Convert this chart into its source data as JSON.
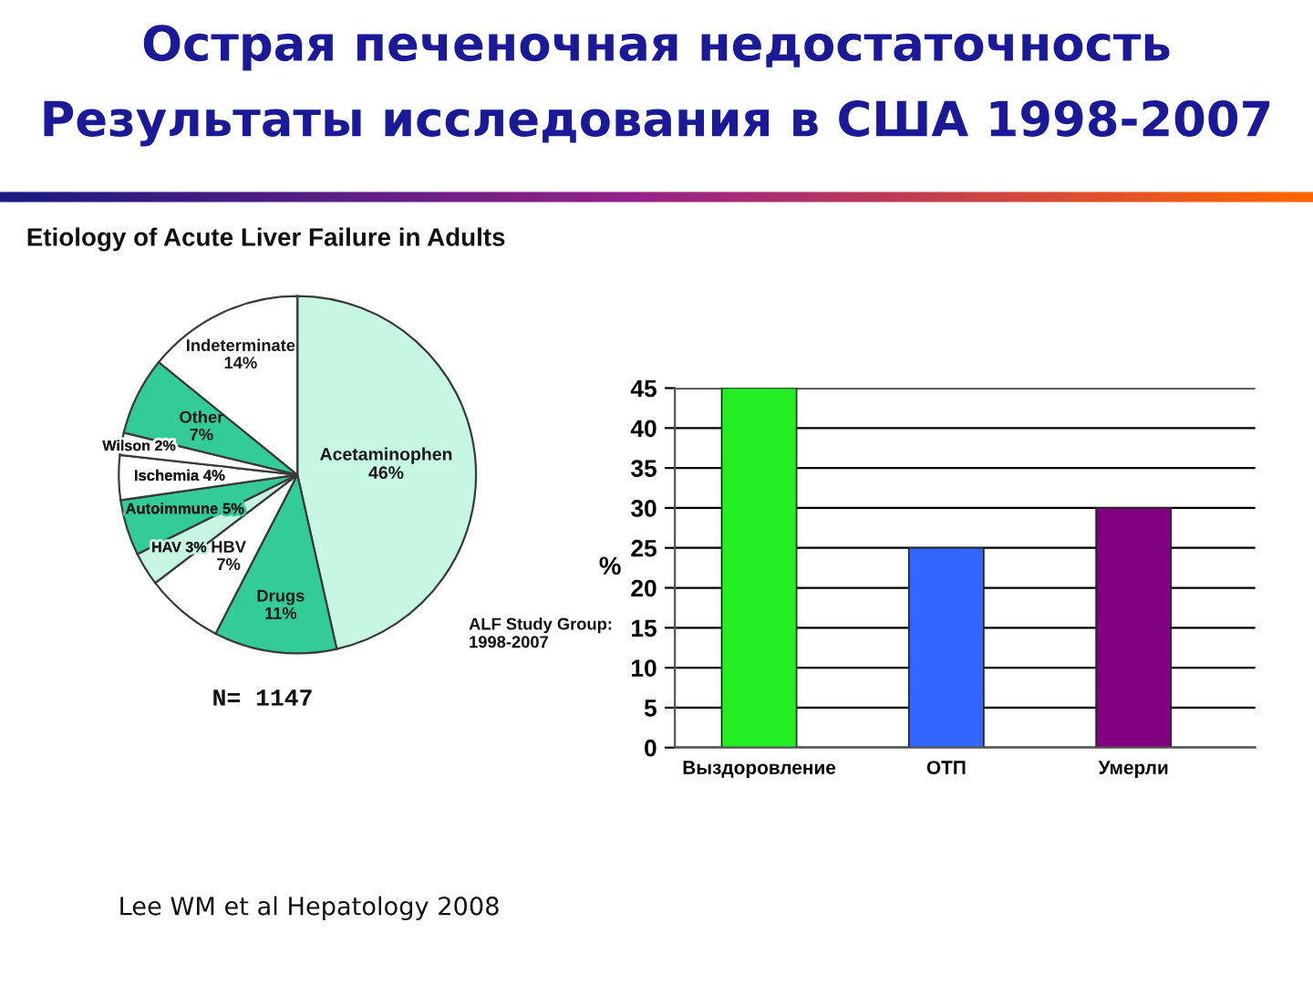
{
  "chart_data": [
    {
      "type": "pie",
      "title": "Etiology of Acute Liver Failure in Adults",
      "categories": [
        "Acetaminophen",
        "Drugs",
        "HBV",
        "HAV",
        "Autoimmune",
        "Ischemia",
        "Wilson",
        "Other",
        "Indeterminate"
      ],
      "values": [
        46,
        11,
        7,
        3,
        5,
        4,
        2,
        7,
        14
      ],
      "colors": [
        "#c6f7e2",
        "#33cc99",
        "#ffffff",
        "#c6f7e2",
        "#33cc99",
        "#ffffff",
        "#ffffff",
        "#33cc99",
        "#ffffff"
      ],
      "value_labels": [
        "46%",
        "11%",
        "7%",
        "3%",
        "5%",
        "4%",
        "2%",
        "7%",
        "14%"
      ],
      "annotations": [
        "N= 1147",
        "ALF Study Group:\n1998-2007",
        "Lee WM et al Hepatology 2008"
      ]
    },
    {
      "type": "bar",
      "title": "Острая печеночная недостаточность",
      "subtitle": "Результаты исследования в США 1998-2007",
      "categories": [
        "Выздоровление",
        "ОТП",
        "Умерли"
      ],
      "values": [
        45,
        25,
        30
      ],
      "colors": [
        "#22ee22",
        "#3366ff",
        "#800080"
      ],
      "ylabel": "%",
      "ylim": [
        0,
        45
      ],
      "yticks": [
        0,
        5,
        10,
        15,
        20,
        25,
        30,
        35,
        40,
        45
      ],
      "grid": "y"
    }
  ]
}
